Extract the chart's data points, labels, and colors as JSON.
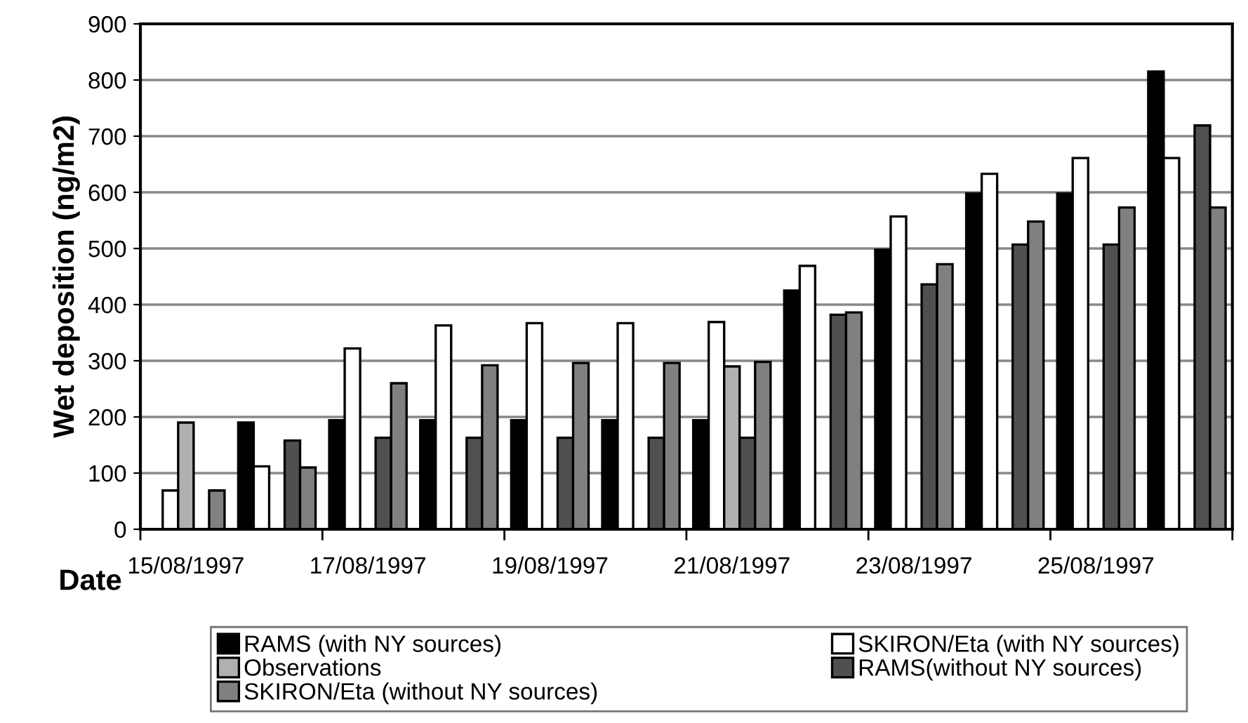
{
  "chart_data": {
    "type": "bar",
    "xlabel": "Date",
    "ylabel": "Wet deposition (ng/m2)",
    "categories": [
      "15/08/1997",
      null,
      "17/08/1997",
      null,
      "19/08/1997",
      null,
      "21/08/1997",
      null,
      "23/08/1997",
      null,
      "25/08/1997",
      null
    ],
    "series": [
      {
        "name": "RAMS (with NY sources)",
        "color": "#000000",
        "values": [
          null,
          190,
          194,
          194,
          194,
          194,
          194,
          425,
          498,
          598,
          598,
          815
        ]
      },
      {
        "name": "SKIRON/Eta (with NY sources)",
        "color": "#ffffff",
        "values": [
          69,
          112,
          322,
          363,
          367,
          367,
          369,
          469,
          557,
          633,
          661,
          661
        ]
      },
      {
        "name": "Observations",
        "color": "#b0b0b0",
        "values": [
          190,
          null,
          null,
          null,
          null,
          null,
          290,
          null,
          null,
          null,
          null,
          null
        ]
      },
      {
        "name": "RAMS(without NY sources)",
        "color": "#505050",
        "values": [
          null,
          158,
          163,
          163,
          163,
          163,
          163,
          382,
          436,
          507,
          507,
          719
        ]
      },
      {
        "name": "SKIRON/Eta (without NY sources)",
        "color": "#808080",
        "values": [
          69,
          110,
          260,
          292,
          296,
          296,
          298,
          386,
          472,
          548,
          573,
          573
        ]
      }
    ],
    "ylim": [
      0,
      900
    ],
    "yticks": [
      0,
      100,
      200,
      300,
      400,
      500,
      600,
      700,
      800,
      900
    ],
    "grid": "y",
    "legend": "bottom"
  }
}
